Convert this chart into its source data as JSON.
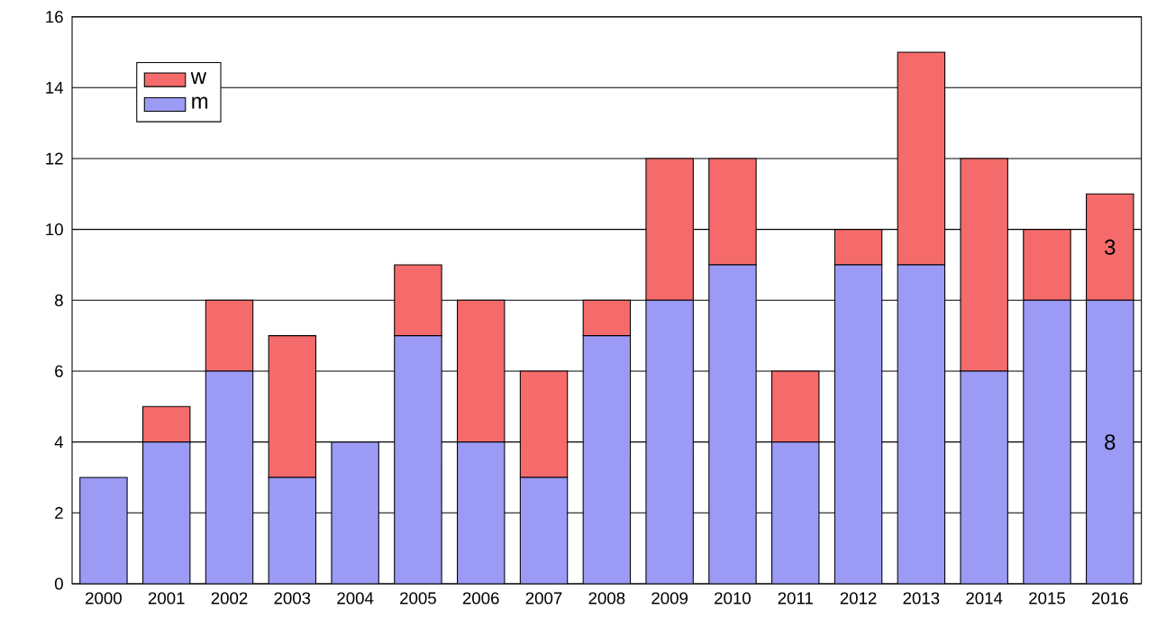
{
  "chart_data": {
    "type": "bar",
    "stacked": true,
    "categories": [
      "2000",
      "2001",
      "2002",
      "2003",
      "2004",
      "2005",
      "2006",
      "2007",
      "2008",
      "2009",
      "2010",
      "2011",
      "2012",
      "2013",
      "2014",
      "2015",
      "2016"
    ],
    "series": [
      {
        "name": "m",
        "color": "#9b9bf5",
        "values": [
          3,
          4,
          6,
          3,
          4,
          7,
          4,
          3,
          7,
          8,
          9,
          4,
          9,
          9,
          6,
          8,
          8
        ],
        "value_labels": [
          null,
          null,
          null,
          null,
          null,
          null,
          null,
          null,
          null,
          null,
          null,
          null,
          null,
          null,
          null,
          null,
          "8"
        ]
      },
      {
        "name": "w",
        "color": "#f56b6b",
        "values": [
          0,
          1,
          2,
          4,
          0,
          2,
          4,
          3,
          1,
          4,
          3,
          2,
          1,
          6,
          6,
          2,
          3
        ],
        "value_labels": [
          null,
          null,
          null,
          null,
          null,
          null,
          null,
          null,
          null,
          null,
          null,
          null,
          null,
          null,
          null,
          null,
          "3"
        ]
      }
    ],
    "ylim": [
      0,
      16
    ],
    "yticks": [
      0,
      2,
      4,
      6,
      8,
      10,
      12,
      14,
      16
    ],
    "grid": "y",
    "legend": "top left"
  }
}
